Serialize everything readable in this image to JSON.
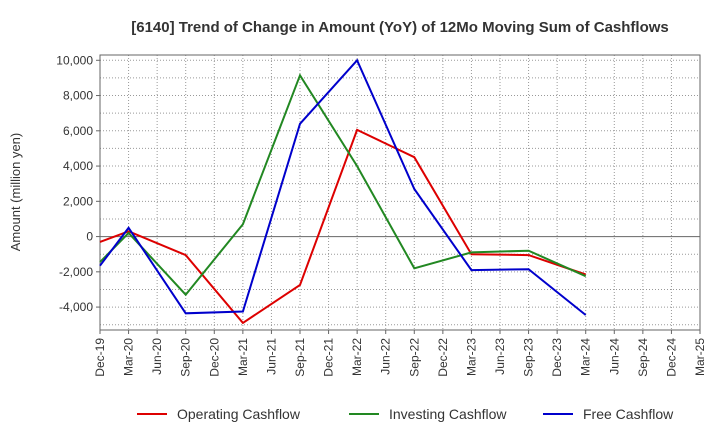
{
  "chart_data": {
    "type": "line",
    "title": "[6140]  Trend of Change in Amount (YoY) of 12Mo Moving Sum of Cashflows",
    "xlabel": "",
    "ylabel": "Amount (million yen)",
    "ylim": [
      -5300,
      10300
    ],
    "yticks": [
      10000,
      8000,
      6000,
      4000,
      2000,
      0,
      -2000,
      -4000
    ],
    "ytick_labels": [
      "10,000",
      "8,000",
      "6,000",
      "4,000",
      "2,000",
      "0",
      "-2,000",
      "-4,000"
    ],
    "categories": [
      "Dec-19",
      "Mar-20",
      "Jun-20",
      "Sep-20",
      "Dec-20",
      "Mar-21",
      "Jun-21",
      "Sep-21",
      "Dec-21",
      "Mar-22",
      "Jun-22",
      "Sep-22",
      "Dec-22",
      "Mar-23",
      "Jun-23",
      "Sep-23",
      "Dec-23",
      "Mar-24",
      "Jun-24",
      "Sep-24",
      "Dec-24",
      "Mar-25"
    ],
    "grid": true,
    "legend_position": "bottom",
    "series": [
      {
        "name": "Operating Cashflow",
        "color": "#dd0000",
        "values": [
          -300,
          300,
          null,
          -1050,
          null,
          -4900,
          null,
          -2750,
          null,
          6050,
          null,
          4500,
          null,
          -1000,
          null,
          -1050,
          null,
          -2150,
          null,
          null,
          null,
          null
        ]
      },
      {
        "name": "Investing Cashflow",
        "color": "#228822",
        "values": [
          -1450,
          200,
          null,
          -3300,
          null,
          700,
          null,
          9150,
          null,
          4000,
          null,
          -1800,
          null,
          -900,
          null,
          -800,
          null,
          -2250,
          null,
          null,
          null,
          null
        ]
      },
      {
        "name": "Free Cashflow",
        "color": "#0000cc",
        "values": [
          -1650,
          500,
          null,
          -4350,
          null,
          -4250,
          null,
          6400,
          null,
          10000,
          null,
          2700,
          null,
          -1900,
          null,
          -1850,
          null,
          -4450,
          null,
          null,
          null,
          null
        ]
      }
    ]
  }
}
